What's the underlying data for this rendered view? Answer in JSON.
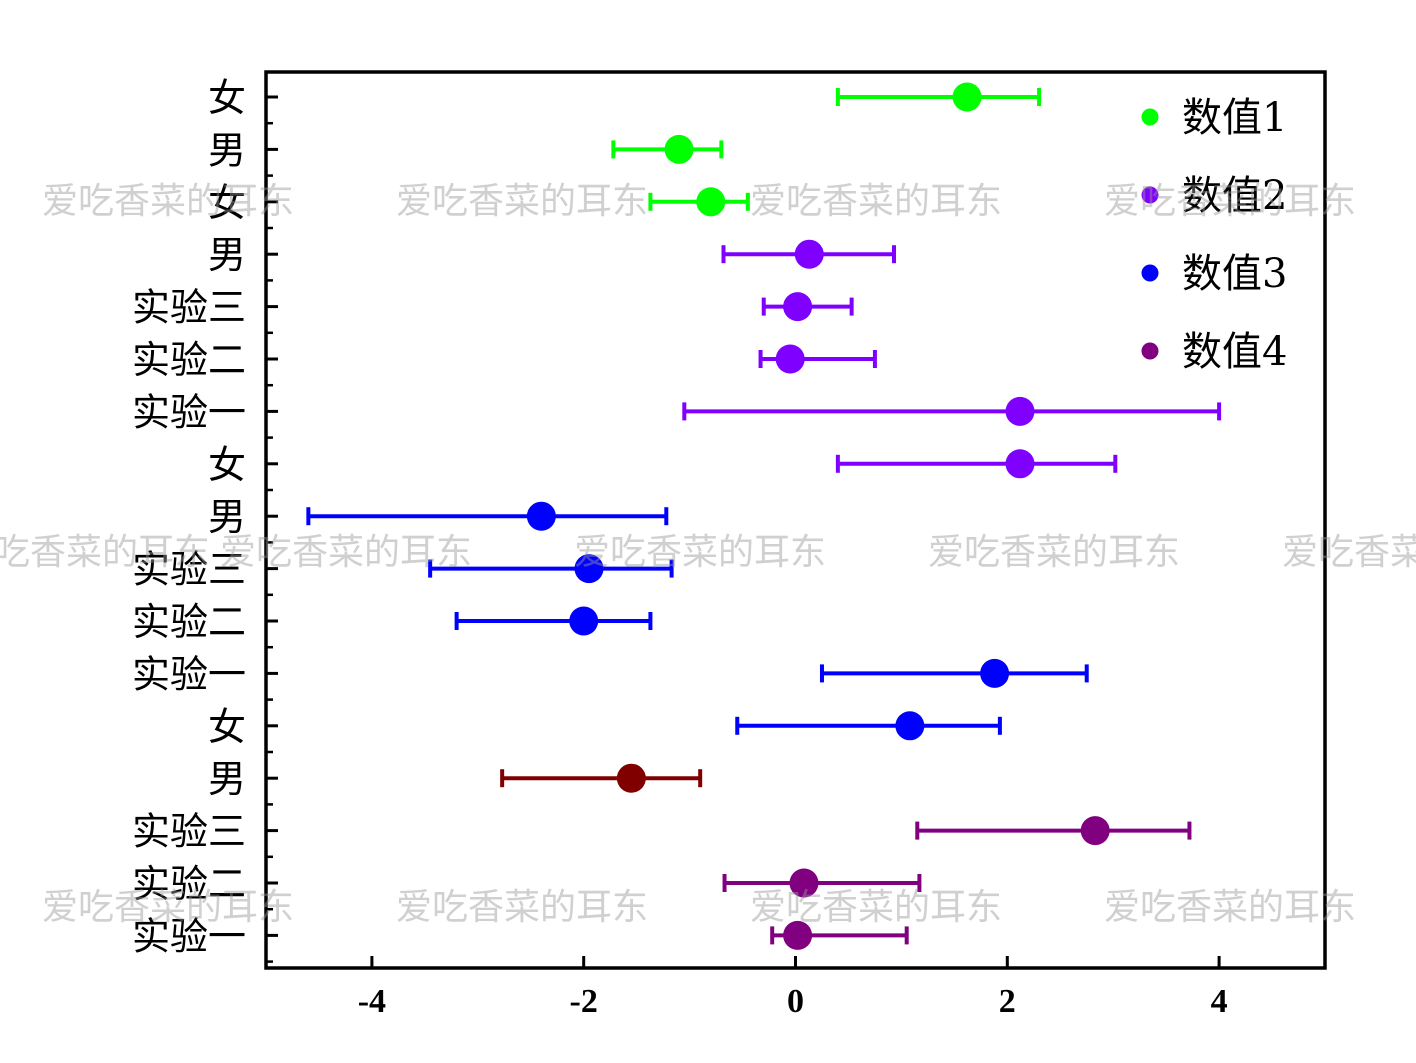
{
  "chart_data": {
    "type": "scatter",
    "orientation": "horizontal-errorbar",
    "xlim": [
      -5,
      5
    ],
    "xticks": [
      -4,
      -2,
      0,
      2,
      4
    ],
    "xtick_labels": [
      "-4",
      "-2",
      "0",
      "2",
      "4"
    ],
    "title": "",
    "xlabel": "",
    "ylabel": "",
    "legend_position": "top-right",
    "categories_top_to_bottom": [
      "女",
      "男",
      "女",
      "男",
      "实验三",
      "实验二",
      "实验一",
      "女",
      "男",
      "实验三",
      "实验二",
      "实验一",
      "女",
      "男",
      "实验三",
      "实验二",
      "实验一"
    ],
    "series": [
      {
        "name": "数值1",
        "legend_color": "#00ff00",
        "points": [
          {
            "label": "女",
            "x": 1.62,
            "err_low": 0.4,
            "err_high": 2.3,
            "color": "#00ff00"
          },
          {
            "label": "男",
            "x": -1.1,
            "err_low": -1.72,
            "err_high": -0.7,
            "color": "#00ff00"
          },
          {
            "label": "女",
            "x": -0.8,
            "err_low": -1.37,
            "err_high": -0.45,
            "color": "#00ff00"
          }
        ]
      },
      {
        "name": "数值2",
        "legend_color": "#8000ff",
        "points": [
          {
            "label": "男",
            "x": 0.13,
            "err_low": -0.68,
            "err_high": 0.93,
            "color": "#8000ff"
          },
          {
            "label": "实验三",
            "x": 0.02,
            "err_low": -0.3,
            "err_high": 0.53,
            "color": "#8000ff"
          },
          {
            "label": "实验二",
            "x": -0.05,
            "err_low": -0.33,
            "err_high": 0.75,
            "color": "#8000ff"
          },
          {
            "label": "实验一",
            "x": 2.12,
            "err_low": -1.05,
            "err_high": 4.0,
            "color": "#8000ff"
          },
          {
            "label": "女",
            "x": 2.12,
            "err_low": 0.4,
            "err_high": 3.02,
            "color": "#8000ff"
          }
        ]
      },
      {
        "name": "数值3",
        "legend_color": "#0000ff",
        "points": [
          {
            "label": "男",
            "x": -2.4,
            "err_low": -4.6,
            "err_high": -1.22,
            "color": "#0000ff"
          },
          {
            "label": "实验三",
            "x": -1.95,
            "err_low": -3.45,
            "err_high": -1.17,
            "color": "#0000ff"
          },
          {
            "label": "实验二",
            "x": -2.0,
            "err_low": -3.2,
            "err_high": -1.37,
            "color": "#0000ff"
          },
          {
            "label": "实验一",
            "x": 1.88,
            "err_low": 0.25,
            "err_high": 2.75,
            "color": "#0000ff"
          },
          {
            "label": "女",
            "x": 1.08,
            "err_low": -0.55,
            "err_high": 1.93,
            "color": "#0000ff"
          }
        ]
      },
      {
        "name": "数值4",
        "legend_color": "#800080",
        "points": [
          {
            "label": "男",
            "x": -1.55,
            "err_low": -2.77,
            "err_high": -0.9,
            "color": "#800000"
          },
          {
            "label": "实验三",
            "x": 2.83,
            "err_low": 1.15,
            "err_high": 3.72,
            "color": "#800080"
          },
          {
            "label": "实验二",
            "x": 0.08,
            "err_low": -0.67,
            "err_high": 1.17,
            "color": "#800080"
          },
          {
            "label": "实验一",
            "x": 0.02,
            "err_low": -0.22,
            "err_high": 1.05,
            "color": "#800080"
          }
        ]
      }
    ],
    "grid": false
  },
  "watermark": {
    "text": "爱吃香菜的耳东"
  }
}
